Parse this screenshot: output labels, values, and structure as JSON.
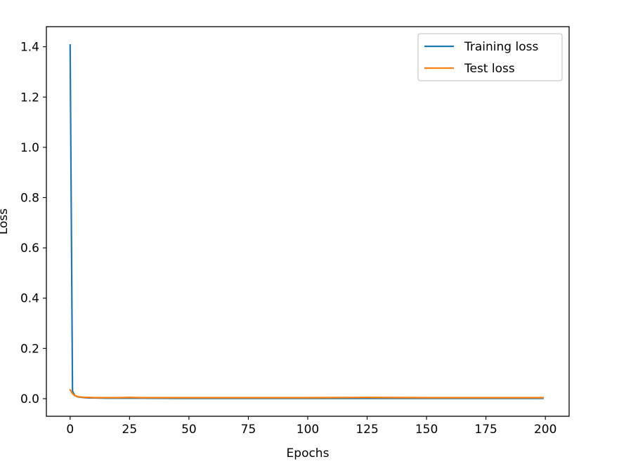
{
  "chart_data": {
    "type": "line",
    "title": "",
    "xlabel": "Epochs",
    "ylabel": "Loss",
    "xlim": [
      -10,
      210
    ],
    "ylim": [
      -0.07,
      1.48
    ],
    "x_ticks": [
      0,
      25,
      50,
      75,
      100,
      125,
      150,
      175,
      200
    ],
    "x_tick_labels": [
      "0",
      "25",
      "50",
      "75",
      "100",
      "125",
      "150",
      "175",
      "200"
    ],
    "y_ticks": [
      0.0,
      0.2,
      0.4,
      0.6,
      0.8,
      1.0,
      1.2,
      1.4
    ],
    "y_tick_labels": [
      "0.0",
      "0.2",
      "0.4",
      "0.6",
      "0.8",
      "1.0",
      "1.2",
      "1.4"
    ],
    "legend_position": "top-right",
    "grid": false,
    "series": [
      {
        "name": "Training loss",
        "color": "#1f77b4",
        "x": [
          0,
          1,
          2,
          3,
          4,
          5,
          6,
          8,
          10,
          15,
          20,
          30,
          50,
          100,
          150,
          199
        ],
        "y": [
          1.407,
          0.03,
          0.012,
          0.008,
          0.006,
          0.005,
          0.004,
          0.003,
          0.003,
          0.002,
          0.002,
          0.002,
          0.001,
          0.001,
          0.001,
          0.001
        ]
      },
      {
        "name": "Test loss",
        "color": "#ff7f0e",
        "x": [
          0,
          1,
          2,
          3,
          4,
          5,
          6,
          8,
          10,
          15,
          20,
          25,
          30,
          40,
          50,
          60,
          75,
          100,
          125,
          150,
          175,
          199
        ],
        "y": [
          0.035,
          0.02,
          0.012,
          0.009,
          0.007,
          0.006,
          0.005,
          0.005,
          0.004,
          0.004,
          0.004,
          0.005,
          0.004,
          0.004,
          0.004,
          0.004,
          0.004,
          0.004,
          0.005,
          0.004,
          0.004,
          0.004
        ]
      }
    ]
  }
}
